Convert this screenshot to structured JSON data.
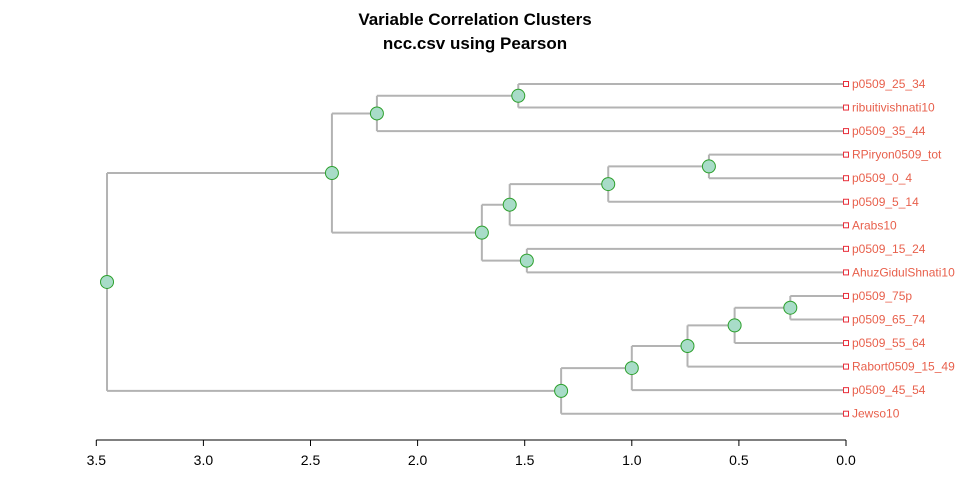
{
  "chart_data": {
    "type": "dendrogram",
    "title": "Variable Correlation Clusters",
    "subtitle": "ncc.csv using Pearson",
    "x_ticks": [
      3.5,
      3.0,
      2.5,
      2.0,
      1.5,
      1.0,
      0.5,
      0.0
    ],
    "x_tick_labels": [
      "3.5",
      "3.0",
      "2.5",
      "2.0",
      "1.5",
      "1.0",
      "0.5",
      "0.0"
    ],
    "xlim": [
      3.5,
      0.0
    ],
    "leaves": [
      "p0509_25_34",
      "ribuitivishnati10",
      "p0509_35_44",
      "RPiryon0509_tot",
      "p0509_0_4",
      "p0509_5_14",
      "Arabs10",
      "p0509_15_24",
      "AhuzGidulShnati10",
      "p0509_75p",
      "p0509_65_74",
      "p0509_55_64",
      "Rabort0509_15_49",
      "p0509_45_54",
      "Jewso10"
    ],
    "merges": [
      {
        "id": "n1",
        "height": 1.53,
        "children": [
          "p0509_25_34",
          "ribuitivishnati10"
        ]
      },
      {
        "id": "n2",
        "height": 2.19,
        "children": [
          "n1",
          "p0509_35_44"
        ]
      },
      {
        "id": "n3",
        "height": 0.64,
        "children": [
          "RPiryon0509_tot",
          "p0509_0_4"
        ]
      },
      {
        "id": "n4",
        "height": 1.11,
        "children": [
          "n3",
          "p0509_5_14"
        ]
      },
      {
        "id": "n5",
        "height": 1.57,
        "children": [
          "n4",
          "Arabs10"
        ]
      },
      {
        "id": "n6",
        "height": 1.49,
        "children": [
          "p0509_15_24",
          "AhuzGidulShnati10"
        ]
      },
      {
        "id": "n7",
        "height": 1.7,
        "children": [
          "n5",
          "n6"
        ]
      },
      {
        "id": "n8",
        "height": 2.4,
        "children": [
          "n2",
          "n7"
        ]
      },
      {
        "id": "n9",
        "height": 0.26,
        "children": [
          "p0509_75p",
          "p0509_65_74"
        ]
      },
      {
        "id": "n10",
        "height": 0.52,
        "children": [
          "n9",
          "p0509_55_64"
        ]
      },
      {
        "id": "n11",
        "height": 0.74,
        "children": [
          "n10",
          "Rabort0509_15_49"
        ]
      },
      {
        "id": "n12",
        "height": 1.0,
        "children": [
          "n11",
          "p0509_45_54"
        ]
      },
      {
        "id": "n13",
        "height": 1.33,
        "children": [
          "n12",
          "Jewso10"
        ]
      },
      {
        "id": "n14",
        "height": 3.45,
        "children": [
          "n8",
          "n13"
        ]
      }
    ],
    "colors": {
      "branch": "#b3b3b3",
      "node_fill": "#a8dcc8",
      "node_stroke": "#2ca02c",
      "leaf_label": "#e8604c",
      "leaf_marker": "#e8303c"
    }
  }
}
